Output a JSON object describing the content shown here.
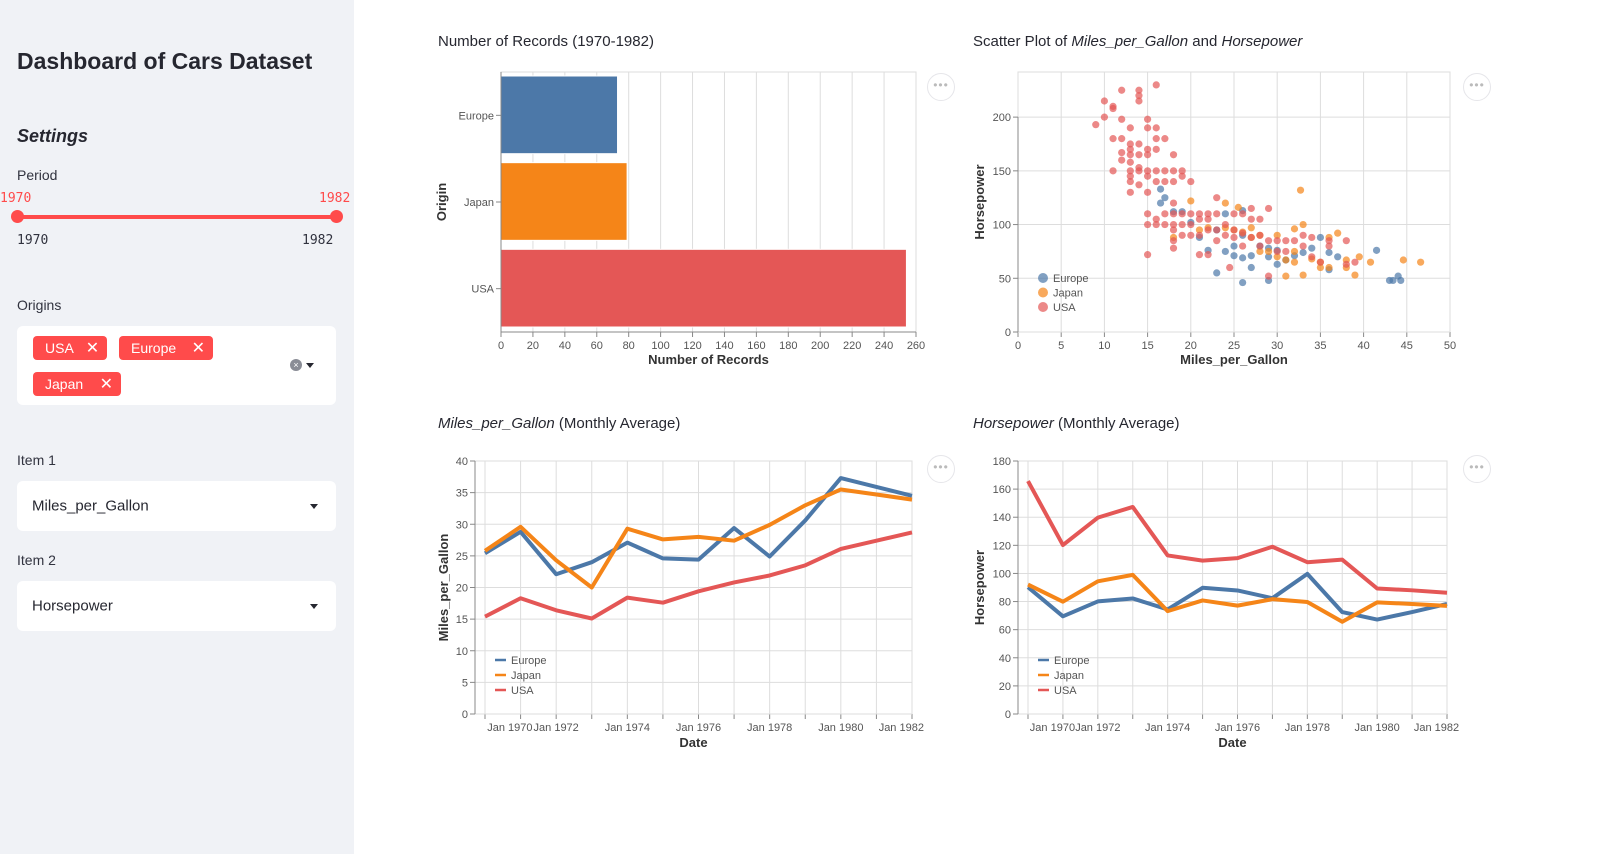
{
  "sidebar": {
    "title": "Dashboard of Cars Dataset",
    "settings_heading": "Settings",
    "period": {
      "label": "Period",
      "min": "1970",
      "max": "1982",
      "value_low": "1970",
      "value_high": "1982"
    },
    "origins": {
      "label": "Origins",
      "selected": [
        "USA",
        "Europe",
        "Japan"
      ],
      "remove_glyph": "✕",
      "clear_glyph": "×"
    },
    "item1": {
      "label": "Item 1",
      "value": "Miles_per_Gallon"
    },
    "item2": {
      "label": "Item 2",
      "value": "Horsepower"
    },
    "accent": "#ff4b4b"
  },
  "more_glyph": "•••",
  "colors": {
    "Europe": "#4c78a8",
    "Japan": "#f58518",
    "USA": "#e45756"
  },
  "titles": {
    "bar": "Number of Records (1970-1982)",
    "scatter_prefix": "Scatter Plot of ",
    "scatter_x": "Miles_per_Gallon",
    "scatter_and": " and ",
    "scatter_y": "Horsepower",
    "line1_field": "Miles_per_Gallon",
    "line1_suffix": " (Monthly Average)",
    "line2_field": "Horsepower",
    "line2_suffix": " (Monthly Average)"
  },
  "chart_data": [
    {
      "type": "bar",
      "orientation": "horizontal",
      "categories": [
        "Europe",
        "Japan",
        "USA"
      ],
      "values": [
        73,
        79,
        254
      ],
      "xlabel": "Number of Records",
      "ylabel": "Origin",
      "xlim": [
        0,
        260
      ],
      "xticks": [
        0,
        20,
        40,
        60,
        80,
        100,
        120,
        140,
        160,
        180,
        200,
        220,
        240,
        260
      ],
      "grid": true
    },
    {
      "type": "scatter",
      "xlabel": "Miles_per_Gallon",
      "ylabel": "Horsepower",
      "xlim": [
        0,
        50
      ],
      "ylim": [
        0,
        240
      ],
      "xticks": [
        0,
        5,
        10,
        15,
        20,
        25,
        30,
        35,
        40,
        45,
        50
      ],
      "yticks": [
        0,
        50,
        100,
        150,
        200
      ],
      "legend": "bottom-left",
      "grid": true,
      "series": [
        {
          "name": "Europe",
          "points": [
            [
              16.5,
              133
            ],
            [
              17,
              125
            ],
            [
              16.5,
              120
            ],
            [
              18,
              112
            ],
            [
              19,
              112
            ],
            [
              20,
              102
            ],
            [
              21,
              88
            ],
            [
              22,
              76
            ],
            [
              23,
              95
            ],
            [
              23,
              55
            ],
            [
              24,
              110
            ],
            [
              24,
              75
            ],
            [
              25,
              80
            ],
            [
              25,
              71
            ],
            [
              26,
              113
            ],
            [
              26,
              90
            ],
            [
              26,
              69
            ],
            [
              26,
              46
            ],
            [
              27,
              60
            ],
            [
              27,
              71
            ],
            [
              28,
              80
            ],
            [
              29,
              78
            ],
            [
              29,
              70
            ],
            [
              29,
              48
            ],
            [
              30,
              76
            ],
            [
              30,
              63
            ],
            [
              31,
              67
            ],
            [
              32,
              71
            ],
            [
              33,
              74
            ],
            [
              34,
              78
            ],
            [
              35,
              88
            ],
            [
              36,
              74
            ],
            [
              36,
              58
            ],
            [
              37,
              70
            ],
            [
              41.5,
              76
            ],
            [
              43,
              48
            ],
            [
              43.4,
              48
            ],
            [
              44,
              52
            ],
            [
              44.3,
              48
            ]
          ]
        },
        {
          "name": "Japan",
          "points": [
            [
              18,
              88
            ],
            [
              20,
              122
            ],
            [
              21,
              95
            ],
            [
              22,
              97
            ],
            [
              24,
              120
            ],
            [
              24,
              97
            ],
            [
              25,
              95
            ],
            [
              25.5,
              116
            ],
            [
              26,
              93
            ],
            [
              27,
              97
            ],
            [
              27,
              88
            ],
            [
              28,
              90
            ],
            [
              28,
              75
            ],
            [
              29,
              75
            ],
            [
              30,
              90
            ],
            [
              30,
              70
            ],
            [
              31,
              67
            ],
            [
              31,
              52
            ],
            [
              32,
              75
            ],
            [
              32,
              65
            ],
            [
              32,
              96
            ],
            [
              33,
              100
            ],
            [
              32.7,
              132
            ],
            [
              33,
              53
            ],
            [
              34,
              68
            ],
            [
              35,
              65
            ],
            [
              35,
              60
            ],
            [
              36,
              88
            ],
            [
              36,
              60
            ],
            [
              37,
              92
            ],
            [
              38,
              67
            ],
            [
              38,
              60
            ],
            [
              39,
              53
            ],
            [
              39.5,
              70
            ],
            [
              40.8,
              65
            ],
            [
              44.6,
              67
            ],
            [
              46.6,
              65
            ]
          ]
        },
        {
          "name": "USA",
          "points": [
            [
              9,
              193
            ],
            [
              10,
              215
            ],
            [
              10,
              200
            ],
            [
              11,
              210
            ],
            [
              11,
              208
            ],
            [
              11,
              180
            ],
            [
              11,
              150
            ],
            [
              12,
              225
            ],
            [
              12,
              198
            ],
            [
              12,
              180
            ],
            [
              12,
              167
            ],
            [
              12,
              160
            ],
            [
              13,
              190
            ],
            [
              13,
              175
            ],
            [
              13,
              170
            ],
            [
              13,
              165
            ],
            [
              13,
              158
            ],
            [
              13,
              150
            ],
            [
              13,
              145
            ],
            [
              13,
              140
            ],
            [
              13,
              130
            ],
            [
              14,
              225
            ],
            [
              14,
              220
            ],
            [
              14,
              215
            ],
            [
              14,
              175
            ],
            [
              14,
              165
            ],
            [
              14,
              153
            ],
            [
              14,
              150
            ],
            [
              14,
              137
            ],
            [
              15,
              198
            ],
            [
              15,
              190
            ],
            [
              15,
              170
            ],
            [
              15,
              165
            ],
            [
              15,
              150
            ],
            [
              15,
              145
            ],
            [
              15,
              130
            ],
            [
              15,
              110
            ],
            [
              15,
              100
            ],
            [
              15,
              72
            ],
            [
              16,
              230
            ],
            [
              16,
              190
            ],
            [
              16,
              180
            ],
            [
              16,
              170
            ],
            [
              16,
              150
            ],
            [
              16,
              140
            ],
            [
              16,
              105
            ],
            [
              16,
              100
            ],
            [
              17,
              180
            ],
            [
              17,
              150
            ],
            [
              17,
              140
            ],
            [
              17,
              110
            ],
            [
              17,
              100
            ],
            [
              18,
              165
            ],
            [
              18,
              150
            ],
            [
              18,
              140
            ],
            [
              18,
              120
            ],
            [
              18,
              110
            ],
            [
              18,
              100
            ],
            [
              18,
              95
            ],
            [
              18,
              85
            ],
            [
              18,
              78
            ],
            [
              19,
              150
            ],
            [
              19,
              145
            ],
            [
              19,
              110
            ],
            [
              19,
              100
            ],
            [
              19,
              90
            ],
            [
              20,
              140
            ],
            [
              20,
              110
            ],
            [
              20,
              100
            ],
            [
              20,
              90
            ],
            [
              21,
              110
            ],
            [
              21,
              105
            ],
            [
              21,
              90
            ],
            [
              21,
              72
            ],
            [
              22,
              110
            ],
            [
              22,
              105
            ],
            [
              22,
              95
            ],
            [
              22,
              72
            ],
            [
              23,
              125
            ],
            [
              23,
              110
            ],
            [
              23,
              95
            ],
            [
              23,
              85
            ],
            [
              24,
              100
            ],
            [
              24,
              90
            ],
            [
              24.5,
              60
            ],
            [
              25,
              110
            ],
            [
              25,
              95
            ],
            [
              25,
              88
            ],
            [
              26,
              110
            ],
            [
              26,
              92
            ],
            [
              26,
              80
            ],
            [
              27,
              115
            ],
            [
              27,
              105
            ],
            [
              27,
              88
            ],
            [
              28,
              105
            ],
            [
              28,
              90
            ],
            [
              28,
              80
            ],
            [
              29,
              115
            ],
            [
              29,
              85
            ],
            [
              29,
              52
            ],
            [
              30,
              85
            ],
            [
              30,
              75
            ],
            [
              31,
              85
            ],
            [
              31,
              75
            ],
            [
              32,
              85
            ],
            [
              33,
              90
            ],
            [
              33,
              80
            ],
            [
              34,
              88
            ],
            [
              34,
              70
            ],
            [
              35,
              65
            ],
            [
              36,
              85
            ],
            [
              36,
              80
            ],
            [
              38,
              85
            ],
            [
              38,
              63
            ],
            [
              39,
              65
            ]
          ]
        }
      ]
    },
    {
      "type": "line",
      "xlabel": "Date",
      "ylabel": "Miles_per_Gallon",
      "x": [
        1970,
        1971,
        1972,
        1973,
        1974,
        1975,
        1976,
        1977,
        1978,
        1979,
        1980,
        1981,
        1982
      ],
      "xtick_labels": [
        "Jan 1970",
        "Jan 1972",
        "Jan 1974",
        "Jan 1976",
        "Jan 1978",
        "Jan 1980",
        "Jan 1982"
      ],
      "ylim": [
        0,
        40
      ],
      "yticks": [
        0,
        5,
        10,
        15,
        20,
        25,
        30,
        35,
        40
      ],
      "legend": "bottom-left",
      "grid": true,
      "series": [
        {
          "name": "Europe",
          "values": [
            25.4,
            28.8,
            22.1,
            24.0,
            27.1,
            24.6,
            24.4,
            29.4,
            24.9,
            30.6,
            37.3,
            35.9,
            34.5
          ]
        },
        {
          "name": "Japan",
          "values": [
            25.8,
            29.6,
            24.3,
            20.0,
            29.3,
            27.6,
            28.0,
            27.4,
            29.9,
            33.0,
            35.5,
            34.7,
            33.9
          ]
        },
        {
          "name": "USA",
          "values": [
            15.4,
            18.3,
            16.4,
            15.1,
            18.4,
            17.6,
            19.4,
            20.8,
            21.9,
            23.5,
            26.1,
            27.4,
            28.7
          ]
        }
      ]
    },
    {
      "type": "line",
      "xlabel": "Date",
      "ylabel": "Horsepower",
      "x": [
        1970,
        1971,
        1972,
        1973,
        1974,
        1975,
        1976,
        1977,
        1978,
        1979,
        1980,
        1981,
        1982
      ],
      "xtick_labels": [
        "Jan 1970",
        "Jan 1972",
        "Jan 1974",
        "Jan 1976",
        "Jan 1978",
        "Jan 1980",
        "Jan 1982"
      ],
      "ylim": [
        0,
        180
      ],
      "yticks": [
        0,
        20,
        40,
        60,
        80,
        100,
        120,
        140,
        160,
        180
      ],
      "legend": "bottom-left",
      "grid": true,
      "series": [
        {
          "name": "Europe",
          "values": [
            90.2,
            69.5,
            80.1,
            82.2,
            74.4,
            89.8,
            87.9,
            82.4,
            99.7,
            72.5,
            67.2,
            72.5,
            78.3
          ]
        },
        {
          "name": "Japan",
          "values": [
            92.1,
            79.9,
            94.4,
            99.0,
            73.2,
            80.8,
            77.1,
            81.7,
            79.7,
            65.6,
            79.4,
            78.3,
            76.9
          ]
        },
        {
          "name": "USA",
          "values": [
            165.7,
            120.2,
            139.7,
            147.3,
            112.8,
            109.1,
            110.9,
            119.0,
            108.0,
            109.8,
            89.3,
            88.0,
            86.3
          ]
        }
      ]
    }
  ]
}
